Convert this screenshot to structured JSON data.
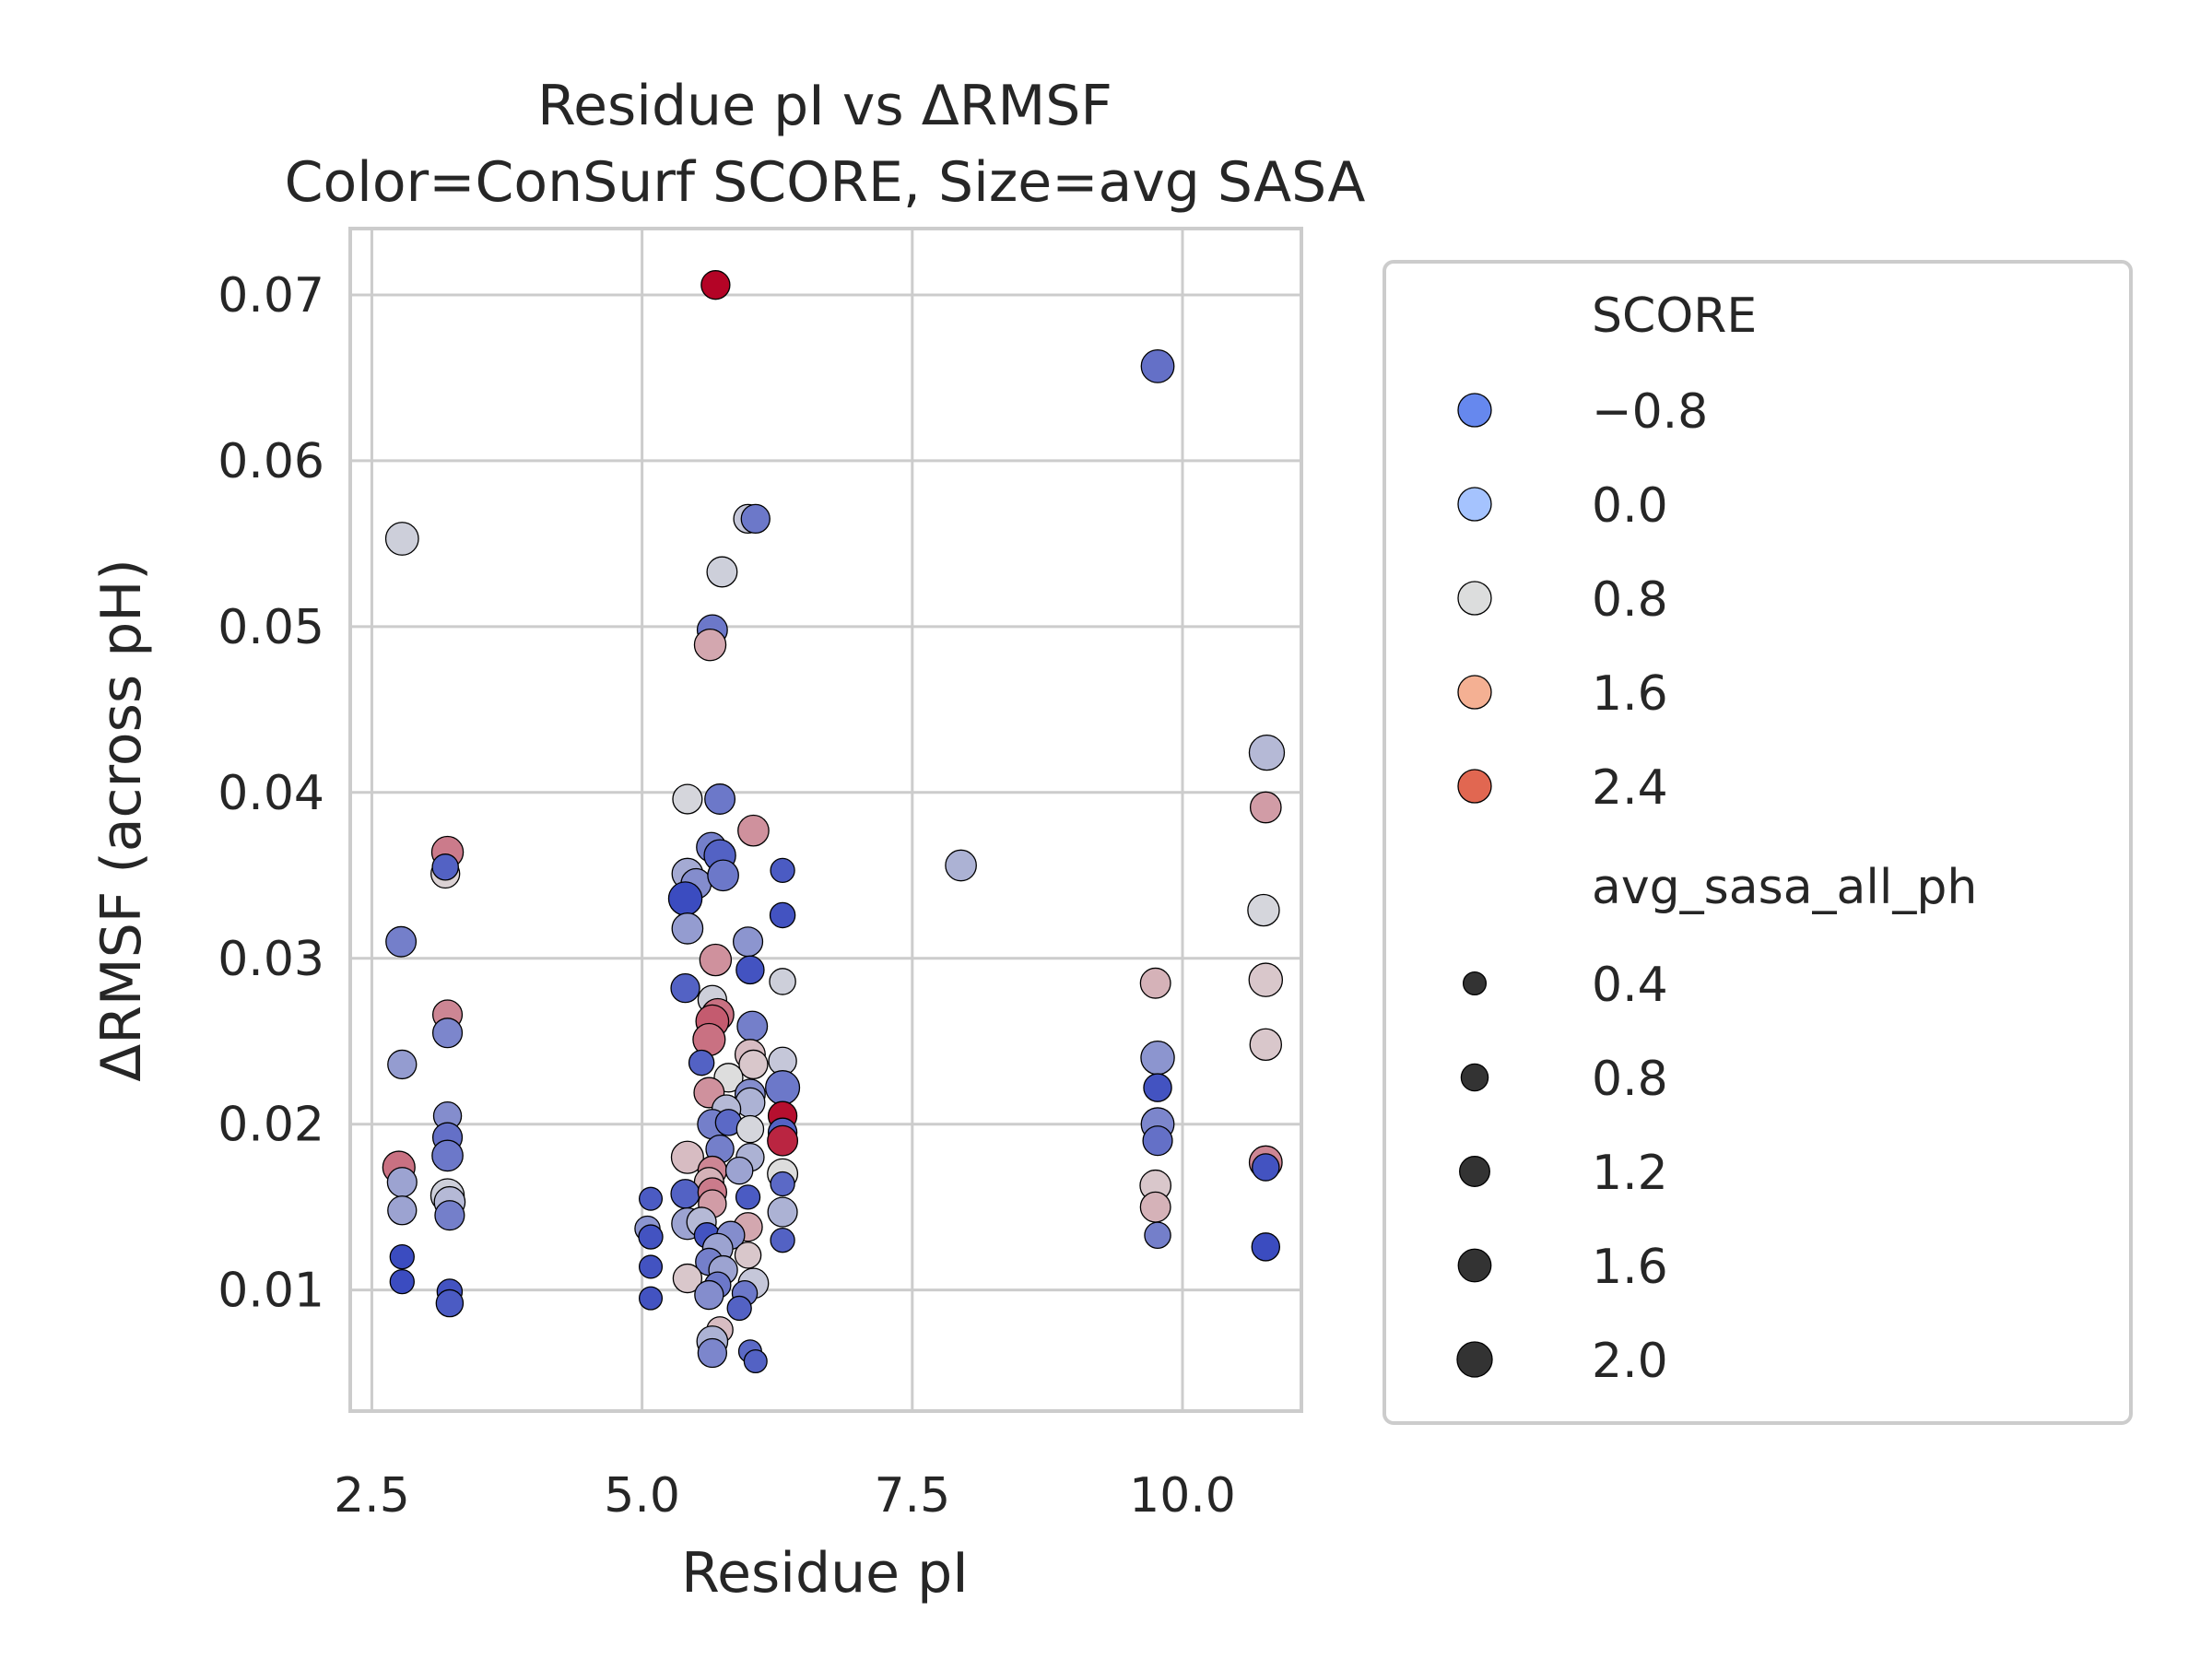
{
  "chart_data": {
    "type": "scatter",
    "title": "Residue pI vs ΔRMSF",
    "subtitle": "Color=ConSurf SCORE, Size=avg SASA",
    "xlabel": "Residue pI",
    "ylabel": "ΔRMSF (across pH)",
    "xlim": [
      2.3,
      11.1
    ],
    "ylim": [
      0.0027,
      0.074
    ],
    "xticks": [
      2.5,
      5.0,
      7.5,
      10.0
    ],
    "xtick_labels": [
      "2.5",
      "5.0",
      "7.5",
      "10.0"
    ],
    "yticks": [
      0.01,
      0.02,
      0.03,
      0.04,
      0.05,
      0.06,
      0.07
    ],
    "ytick_labels": [
      "0.01",
      "0.02",
      "0.03",
      "0.04",
      "0.05",
      "0.06",
      "0.07"
    ],
    "grid": true,
    "legend_position": "outside-right",
    "color_scale": {
      "name": "coolwarm",
      "min": -1.2,
      "max": 2.8,
      "low_color": "#3b4cc0",
      "mid_color": "#dddddd",
      "high_color": "#b40426"
    },
    "legend_hue": {
      "title": "SCORE",
      "entries": [
        {
          "label": "−0.8",
          "value": -0.8,
          "color": "#6688ee"
        },
        {
          "label": "0.0",
          "value": 0.0,
          "color": "#a5c3fe"
        },
        {
          "label": "0.8",
          "value": 0.8,
          "color": "#dcdddd"
        },
        {
          "label": "1.6",
          "value": 1.6,
          "color": "#f4b093"
        },
        {
          "label": "2.4",
          "value": 2.4,
          "color": "#e16751"
        }
      ]
    },
    "legend_size": {
      "title": "avg_sasa_all_ph",
      "marker_color": "#333333",
      "entries": [
        {
          "label": "0.4",
          "value": 0.4
        },
        {
          "label": "0.8",
          "value": 0.8
        },
        {
          "label": "1.2",
          "value": 1.2
        },
        {
          "label": "1.6",
          "value": 1.6
        },
        {
          "label": "2.0",
          "value": 2.0
        }
      ]
    },
    "points": [
      {
        "x": 5.68,
        "y": 0.0706,
        "score": 2.8,
        "sasa": 1.0
      },
      {
        "x": 9.77,
        "y": 0.0657,
        "score": -0.7,
        "sasa": 1.6
      },
      {
        "x": 2.78,
        "y": 0.0553,
        "score": 0.6,
        "sasa": 1.6
      },
      {
        "x": 5.98,
        "y": 0.0565,
        "score": 0.5,
        "sasa": 1.0
      },
      {
        "x": 6.05,
        "y": 0.0565,
        "score": -0.6,
        "sasa": 1.0
      },
      {
        "x": 5.74,
        "y": 0.0533,
        "score": 0.6,
        "sasa": 1.2
      },
      {
        "x": 5.65,
        "y": 0.0498,
        "score": -0.6,
        "sasa": 1.2
      },
      {
        "x": 5.63,
        "y": 0.0489,
        "score": 1.3,
        "sasa": 1.4
      },
      {
        "x": 10.78,
        "y": 0.0424,
        "score": 0.3,
        "sasa": 2.0
      },
      {
        "x": 10.77,
        "y": 0.0391,
        "score": 1.4,
        "sasa": 1.3
      },
      {
        "x": 5.42,
        "y": 0.0396,
        "score": 0.7,
        "sasa": 1.1
      },
      {
        "x": 5.72,
        "y": 0.0396,
        "score": -0.6,
        "sasa": 1.2
      },
      {
        "x": 6.03,
        "y": 0.0377,
        "score": 1.5,
        "sasa": 1.3
      },
      {
        "x": 5.64,
        "y": 0.0367,
        "score": -0.5,
        "sasa": 1.1
      },
      {
        "x": 5.72,
        "y": 0.0362,
        "score": -0.9,
        "sasa": 1.4
      },
      {
        "x": 3.2,
        "y": 0.0364,
        "score": 1.7,
        "sasa": 1.4
      },
      {
        "x": 3.18,
        "y": 0.0351,
        "score": 0.9,
        "sasa": 1.0
      },
      {
        "x": 3.18,
        "y": 0.0355,
        "score": -0.9,
        "sasa": 0.7
      },
      {
        "x": 7.95,
        "y": 0.0356,
        "score": 0.2,
        "sasa": 1.3
      },
      {
        "x": 5.42,
        "y": 0.0351,
        "score": 0.1,
        "sasa": 1.3
      },
      {
        "x": 5.5,
        "y": 0.0345,
        "score": -0.3,
        "sasa": 1.2
      },
      {
        "x": 5.75,
        "y": 0.035,
        "score": -0.6,
        "sasa": 1.3
      },
      {
        "x": 6.3,
        "y": 0.0353,
        "score": -1.0,
        "sasa": 0.5
      },
      {
        "x": 5.4,
        "y": 0.0336,
        "score": -1.2,
        "sasa": 1.7
      },
      {
        "x": 5.42,
        "y": 0.0318,
        "score": -0.1,
        "sasa": 1.3
      },
      {
        "x": 6.3,
        "y": 0.0326,
        "score": -1.1,
        "sasa": 0.6
      },
      {
        "x": 10.75,
        "y": 0.0329,
        "score": 0.7,
        "sasa": 1.4
      },
      {
        "x": 2.77,
        "y": 0.031,
        "score": -0.5,
        "sasa": 1.2
      },
      {
        "x": 5.98,
        "y": 0.031,
        "score": -0.2,
        "sasa": 1.1
      },
      {
        "x": 5.68,
        "y": 0.0299,
        "score": 1.5,
        "sasa": 1.4
      },
      {
        "x": 6.0,
        "y": 0.0293,
        "score": -1.1,
        "sasa": 0.9
      },
      {
        "x": 6.3,
        "y": 0.0286,
        "score": 0.6,
        "sasa": 0.7
      },
      {
        "x": 9.75,
        "y": 0.0285,
        "score": 1.2,
        "sasa": 1.2
      },
      {
        "x": 10.77,
        "y": 0.0287,
        "score": 1.0,
        "sasa": 1.7
      },
      {
        "x": 5.4,
        "y": 0.0282,
        "score": -0.9,
        "sasa": 1.0
      },
      {
        "x": 5.65,
        "y": 0.0275,
        "score": 0.6,
        "sasa": 1.0
      },
      {
        "x": 5.7,
        "y": 0.0266,
        "score": 1.8,
        "sasa": 1.5
      },
      {
        "x": 5.65,
        "y": 0.0262,
        "score": 2.0,
        "sasa": 1.6
      },
      {
        "x": 3.2,
        "y": 0.0266,
        "score": 1.6,
        "sasa": 1.1
      },
      {
        "x": 5.62,
        "y": 0.0251,
        "score": 1.8,
        "sasa": 1.5
      },
      {
        "x": 6.02,
        "y": 0.0259,
        "score": -0.5,
        "sasa": 1.2
      },
      {
        "x": 3.2,
        "y": 0.0255,
        "score": -0.4,
        "sasa": 1.1
      },
      {
        "x": 10.77,
        "y": 0.0248,
        "score": 1.0,
        "sasa": 1.4
      },
      {
        "x": 6.0,
        "y": 0.0242,
        "score": 1.1,
        "sasa": 1.2
      },
      {
        "x": 9.77,
        "y": 0.024,
        "score": -0.2,
        "sasa": 1.7
      },
      {
        "x": 2.78,
        "y": 0.0236,
        "score": -0.1,
        "sasa": 1.0
      },
      {
        "x": 6.3,
        "y": 0.0238,
        "score": 0.5,
        "sasa": 0.9
      },
      {
        "x": 6.03,
        "y": 0.0236,
        "score": 1.0,
        "sasa": 1.0
      },
      {
        "x": 5.55,
        "y": 0.0237,
        "score": -0.9,
        "sasa": 0.6
      },
      {
        "x": 5.8,
        "y": 0.0228,
        "score": 0.8,
        "sasa": 1.0
      },
      {
        "x": 6.3,
        "y": 0.0222,
        "score": -0.6,
        "sasa": 1.8
      },
      {
        "x": 9.77,
        "y": 0.0222,
        "score": -1.1,
        "sasa": 0.9
      },
      {
        "x": 5.62,
        "y": 0.0219,
        "score": 1.5,
        "sasa": 1.2
      },
      {
        "x": 6.0,
        "y": 0.0218,
        "score": -0.3,
        "sasa": 1.2
      },
      {
        "x": 6.0,
        "y": 0.0213,
        "score": 0.2,
        "sasa": 1.1
      },
      {
        "x": 5.78,
        "y": 0.0209,
        "score": 0.3,
        "sasa": 1.0
      },
      {
        "x": 6.3,
        "y": 0.0205,
        "score": 2.7,
        "sasa": 1.0
      },
      {
        "x": 3.2,
        "y": 0.0205,
        "score": -0.3,
        "sasa": 0.9
      },
      {
        "x": 5.65,
        "y": 0.02,
        "score": -0.5,
        "sasa": 1.1
      },
      {
        "x": 5.8,
        "y": 0.0201,
        "score": -0.8,
        "sasa": 0.7
      },
      {
        "x": 9.77,
        "y": 0.02,
        "score": -0.4,
        "sasa": 1.6
      },
      {
        "x": 6.0,
        "y": 0.0197,
        "score": 0.7,
        "sasa": 0.8
      },
      {
        "x": 6.3,
        "y": 0.0195,
        "score": -0.9,
        "sasa": 1.0
      },
      {
        "x": 6.3,
        "y": 0.019,
        "score": 2.5,
        "sasa": 1.2
      },
      {
        "x": 3.2,
        "y": 0.0192,
        "score": -0.7,
        "sasa": 1.1
      },
      {
        "x": 9.77,
        "y": 0.019,
        "score": -0.7,
        "sasa": 1.1
      },
      {
        "x": 5.42,
        "y": 0.018,
        "score": 1.1,
        "sasa": 1.5
      },
      {
        "x": 5.72,
        "y": 0.0185,
        "score": -0.5,
        "sasa": 0.9
      },
      {
        "x": 6.0,
        "y": 0.018,
        "score": 0.2,
        "sasa": 0.9
      },
      {
        "x": 3.2,
        "y": 0.0181,
        "score": -0.6,
        "sasa": 1.3
      },
      {
        "x": 10.77,
        "y": 0.0177,
        "score": 1.6,
        "sasa": 1.6
      },
      {
        "x": 2.75,
        "y": 0.0174,
        "score": 1.8,
        "sasa": 1.5
      },
      {
        "x": 10.77,
        "y": 0.0174,
        "score": -1.1,
        "sasa": 0.8
      },
      {
        "x": 5.65,
        "y": 0.0172,
        "score": 1.6,
        "sasa": 1.0
      },
      {
        "x": 5.9,
        "y": 0.0172,
        "score": 0.0,
        "sasa": 0.8
      },
      {
        "x": 6.3,
        "y": 0.017,
        "score": 0.8,
        "sasa": 1.2
      },
      {
        "x": 2.78,
        "y": 0.0165,
        "score": 0.0,
        "sasa": 1.1
      },
      {
        "x": 5.62,
        "y": 0.0165,
        "score": 1.2,
        "sasa": 1.1
      },
      {
        "x": 6.3,
        "y": 0.0164,
        "score": -0.8,
        "sasa": 0.5
      },
      {
        "x": 9.75,
        "y": 0.0163,
        "score": 1.0,
        "sasa": 1.3
      },
      {
        "x": 5.4,
        "y": 0.0158,
        "score": -0.9,
        "sasa": 1.0
      },
      {
        "x": 5.65,
        "y": 0.0159,
        "score": 1.7,
        "sasa": 1.0
      },
      {
        "x": 3.2,
        "y": 0.0157,
        "score": 0.6,
        "sasa": 1.7
      },
      {
        "x": 5.08,
        "y": 0.0155,
        "score": -1.0,
        "sasa": 0.4
      },
      {
        "x": 5.98,
        "y": 0.0156,
        "score": -1.0,
        "sasa": 0.5
      },
      {
        "x": 3.22,
        "y": 0.0153,
        "score": 0.3,
        "sasa": 1.3
      },
      {
        "x": 5.65,
        "y": 0.0152,
        "score": 1.4,
        "sasa": 0.9
      },
      {
        "x": 9.75,
        "y": 0.015,
        "score": 1.2,
        "sasa": 1.2
      },
      {
        "x": 2.78,
        "y": 0.0148,
        "score": 0.0,
        "sasa": 1.0
      },
      {
        "x": 6.3,
        "y": 0.0147,
        "score": 0.2,
        "sasa": 1.1
      },
      {
        "x": 3.22,
        "y": 0.0145,
        "score": -0.5,
        "sasa": 1.1
      },
      {
        "x": 5.42,
        "y": 0.014,
        "score": 0.0,
        "sasa": 1.4
      },
      {
        "x": 5.55,
        "y": 0.0141,
        "score": 0.3,
        "sasa": 1.1
      },
      {
        "x": 5.98,
        "y": 0.0138,
        "score": 1.3,
        "sasa": 1.0
      },
      {
        "x": 5.05,
        "y": 0.0137,
        "score": -0.2,
        "sasa": 0.6
      },
      {
        "x": 9.77,
        "y": 0.0133,
        "score": -0.5,
        "sasa": 0.7
      },
      {
        "x": 5.08,
        "y": 0.0132,
        "score": -1.1,
        "sasa": 0.5
      },
      {
        "x": 5.6,
        "y": 0.0133,
        "score": -1.1,
        "sasa": 0.6
      },
      {
        "x": 6.3,
        "y": 0.013,
        "score": -0.9,
        "sasa": 0.5
      },
      {
        "x": 5.82,
        "y": 0.0133,
        "score": -0.3,
        "sasa": 0.9
      },
      {
        "x": 10.77,
        "y": 0.0126,
        "score": -1.2,
        "sasa": 0.9
      },
      {
        "x": 5.7,
        "y": 0.0125,
        "score": 0.0,
        "sasa": 1.2
      },
      {
        "x": 5.98,
        "y": 0.0121,
        "score": 1.0,
        "sasa": 0.7
      },
      {
        "x": 2.78,
        "y": 0.012,
        "score": -1.2,
        "sasa": 0.5
      },
      {
        "x": 5.62,
        "y": 0.0117,
        "score": -0.5,
        "sasa": 0.8
      },
      {
        "x": 5.08,
        "y": 0.0114,
        "score": -1.1,
        "sasa": 0.4
      },
      {
        "x": 5.75,
        "y": 0.0112,
        "score": 0.0,
        "sasa": 1.0
      },
      {
        "x": 5.42,
        "y": 0.0107,
        "score": 1.0,
        "sasa": 1.0
      },
      {
        "x": 2.78,
        "y": 0.0105,
        "score": -1.2,
        "sasa": 0.5
      },
      {
        "x": 6.03,
        "y": 0.0104,
        "score": 0.5,
        "sasa": 1.2
      },
      {
        "x": 5.7,
        "y": 0.0103,
        "score": -0.6,
        "sasa": 0.7
      },
      {
        "x": 3.22,
        "y": 0.0099,
        "score": -1.1,
        "sasa": 0.6
      },
      {
        "x": 5.62,
        "y": 0.0097,
        "score": -0.3,
        "sasa": 1.0
      },
      {
        "x": 5.95,
        "y": 0.0098,
        "score": -0.6,
        "sasa": 0.6
      },
      {
        "x": 5.08,
        "y": 0.0095,
        "score": -1.1,
        "sasa": 0.4
      },
      {
        "x": 3.22,
        "y": 0.0092,
        "score": -1.0,
        "sasa": 0.8
      },
      {
        "x": 5.9,
        "y": 0.0089,
        "score": -0.9,
        "sasa": 0.5
      },
      {
        "x": 5.72,
        "y": 0.0076,
        "score": 1.1,
        "sasa": 0.7
      },
      {
        "x": 5.65,
        "y": 0.0069,
        "score": 0.2,
        "sasa": 1.3
      },
      {
        "x": 5.65,
        "y": 0.0062,
        "score": -0.4,
        "sasa": 1.0
      },
      {
        "x": 6.0,
        "y": 0.0063,
        "score": -0.8,
        "sasa": 0.4
      },
      {
        "x": 6.05,
        "y": 0.0057,
        "score": -0.9,
        "sasa": 0.4
      }
    ]
  }
}
